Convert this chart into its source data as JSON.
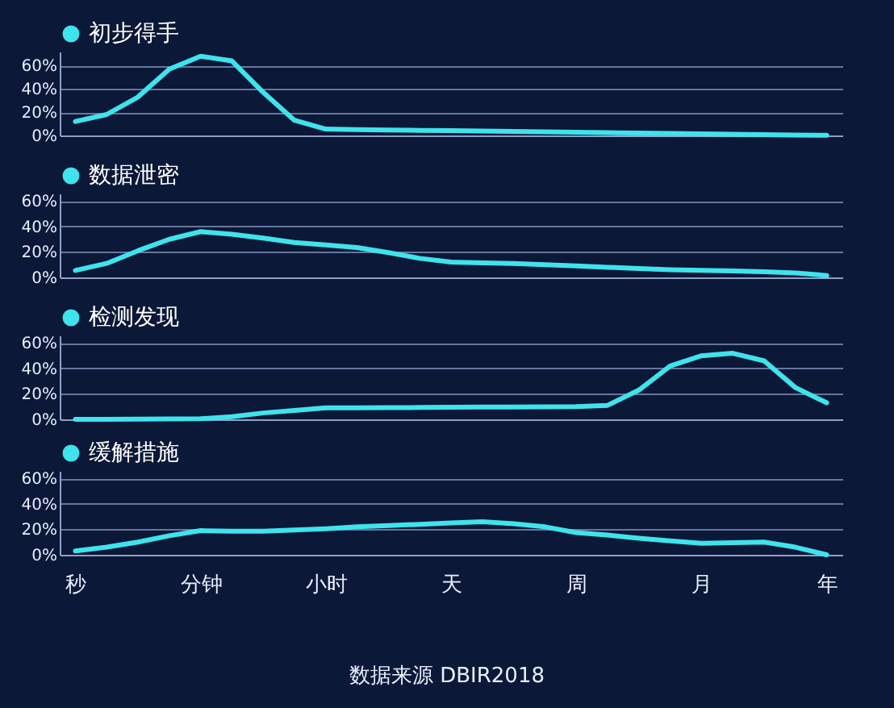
{
  "chart_data": [
    {
      "type": "line",
      "categories": [
        null,
        null,
        null,
        null,
        null,
        null,
        null,
        null,
        null,
        null,
        null,
        null,
        null,
        null,
        null,
        null,
        null,
        null,
        null,
        null,
        null,
        null,
        null,
        null,
        null
      ],
      "series": [
        {
          "name": "初步得手",
          "color": "#3fe3ec",
          "values": [
            12,
            18,
            33,
            57,
            68,
            64,
            37,
            13,
            5.5,
            5.1,
            4.7,
            4.4,
            4.1,
            3.8,
            3.4,
            3.1,
            2.8,
            2.4,
            2.1,
            1.7,
            1.4,
            1,
            0.7,
            0.4,
            0.1
          ]
        }
      ],
      "ylim": [
        0,
        72
      ],
      "yticks": [
        {
          "value": 0,
          "label": "0%"
        },
        {
          "value": 20,
          "label": "20%"
        },
        {
          "value": 40,
          "label": "40%"
        },
        {
          "value": 60,
          "label": "60%"
        }
      ],
      "grid": "y",
      "legend": "top left",
      "tick_labels": "y"
    },
    {
      "type": "line",
      "categories": [
        null,
        null,
        null,
        null,
        null,
        null,
        null,
        null,
        null,
        null,
        null,
        null,
        null,
        null,
        null,
        null,
        null,
        null,
        null,
        null,
        null,
        null,
        null,
        null,
        null
      ],
      "series": [
        {
          "name": "数据泄密",
          "color": "#3fe3ec",
          "values": [
            5.5,
            11,
            21,
            30,
            36,
            34,
            31,
            27.5,
            25.5,
            23.5,
            19.5,
            15,
            12,
            11.5,
            11,
            10,
            9,
            8,
            7,
            6,
            5.5,
            5,
            4.5,
            3.5,
            1.5
          ]
        }
      ],
      "ylim": [
        0,
        66
      ],
      "yticks": [
        {
          "value": 0,
          "label": "0%"
        },
        {
          "value": 20,
          "label": "20%"
        },
        {
          "value": 40,
          "label": "40%"
        },
        {
          "value": 60,
          "label": "60%"
        }
      ],
      "grid": "y",
      "legend": "top left",
      "tick_labels": "y"
    },
    {
      "type": "line",
      "categories": [
        null,
        null,
        null,
        null,
        null,
        null,
        null,
        null,
        null,
        null,
        null,
        null,
        null,
        null,
        null,
        null,
        null,
        null,
        null,
        null,
        null,
        null,
        null,
        null,
        null
      ],
      "series": [
        {
          "name": "检测发现",
          "color": "#3fe3ec",
          "values": [
            0,
            0,
            0.2,
            0.3,
            0.5,
            2,
            5,
            7,
            9,
            9,
            9.2,
            9.3,
            9.5,
            9.6,
            9.7,
            9.8,
            10,
            11,
            23,
            42,
            50,
            52,
            46,
            25,
            13
          ]
        }
      ],
      "ylim": [
        0,
        66
      ],
      "yticks": [
        {
          "value": 0,
          "label": "0%"
        },
        {
          "value": 20,
          "label": "20%"
        },
        {
          "value": 40,
          "label": "40%"
        },
        {
          "value": 60,
          "label": "60%"
        }
      ],
      "grid": "y",
      "legend": "top left",
      "tick_labels": "y"
    },
    {
      "type": "line",
      "categories": [
        "秒",
        null,
        null,
        null,
        "分钟",
        null,
        null,
        null,
        "小时",
        null,
        null,
        null,
        "天",
        null,
        null,
        null,
        "周",
        null,
        null,
        null,
        "月",
        null,
        null,
        null,
        "年"
      ],
      "series": [
        {
          "name": "缓解措施",
          "color": "#3fe3ec",
          "values": [
            3,
            6,
            10,
            15,
            19,
            18.5,
            18.5,
            19.5,
            20.5,
            22,
            23,
            24,
            25,
            26,
            24.5,
            22,
            17.5,
            15.5,
            13,
            11,
            9,
            9.5,
            10,
            6,
            0
          ]
        }
      ],
      "ylim": [
        0,
        66
      ],
      "yticks": [
        {
          "value": 0,
          "label": "0%"
        },
        {
          "value": 20,
          "label": "20%"
        },
        {
          "value": 40,
          "label": "40%"
        },
        {
          "value": 60,
          "label": "60%"
        }
      ],
      "grid": "y",
      "legend": "top left",
      "annotations": [
        "数据来源 DBIR2018"
      ]
    }
  ]
}
